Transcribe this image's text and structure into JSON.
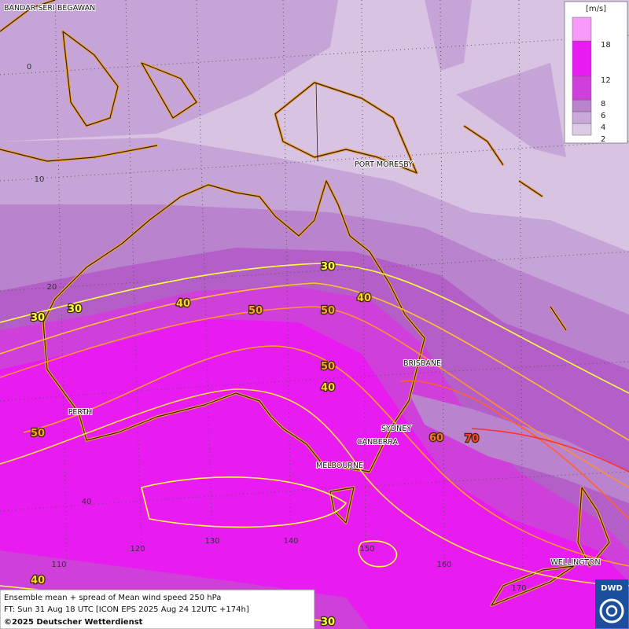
{
  "legend": {
    "unit": "[m/s]",
    "levels": [
      {
        "value": 2,
        "color": "#dccbe4"
      },
      {
        "value": 4,
        "color": "#c9a9da"
      },
      {
        "value": 6,
        "color": "#b983cd"
      },
      {
        "value": 8,
        "color": "#cf3fd9"
      },
      {
        "value": 12,
        "color": "#e81cf0"
      },
      {
        "value": 18,
        "color": "#f79af8"
      }
    ]
  },
  "map": {
    "cities": [
      "BANDAR SERI BEGAWAN",
      "PORT MORESBY",
      "BRISBANE",
      "PERTH",
      "SYDNEY",
      "CANBERRA",
      "MELBOURNE",
      "WELLINGTON"
    ],
    "latitude_labels": [
      0,
      10,
      20,
      40
    ],
    "longitude_labels": [
      110,
      120,
      130,
      140,
      150,
      160,
      170
    ],
    "contour_labels": [
      30,
      30,
      30,
      40,
      40,
      50,
      50,
      50,
      40,
      50,
      60,
      70,
      40,
      30
    ]
  },
  "footer": {
    "line1": "Ensemble mean + spread of Mean wind speed 250 hPa",
    "line2": "FT: Sun 31 Aug 18 UTC [ICON EPS 2025 Aug 24 12UTC +174h]",
    "line3": "©2025 Deutscher Wetterdienst"
  },
  "logo": "DWD"
}
